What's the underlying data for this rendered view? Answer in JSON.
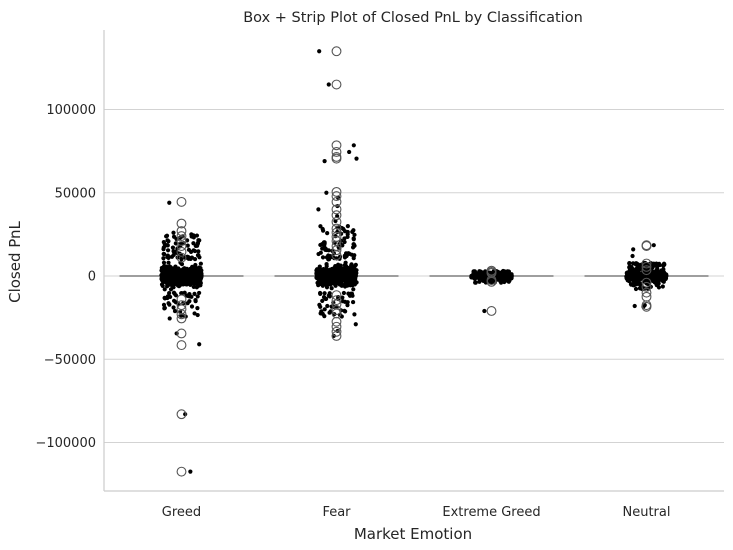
{
  "chart_data": {
    "type": "box+strip",
    "title": "Box + Strip Plot of Closed PnL by Classification",
    "xlabel": "Market Emotion",
    "ylabel": "Closed PnL",
    "ylim": [
      -130000,
      148000
    ],
    "yticks": [
      {
        "value": 100000,
        "label": "100000"
      },
      {
        "value": 50000,
        "label": "50000"
      },
      {
        "value": 0,
        "label": "0"
      },
      {
        "value": -50000,
        "label": "−50000"
      },
      {
        "value": -100000,
        "label": "−100000"
      }
    ],
    "grid": "horizontal",
    "colors": {
      "grid": "#d3d3d3",
      "axis": "#cccccc",
      "box": "#7f7f7f",
      "strip": "#000000",
      "flier_edge": "#555555"
    },
    "categories": [
      "Greed",
      "Fear",
      "Extreme Greed",
      "Neutral"
    ],
    "groups": [
      {
        "category": "Greed",
        "box": {
          "q1": 0,
          "median": 0,
          "q3": 0,
          "whisker_low": 0,
          "whisker_high": 0
        },
        "core_range": [
          -8000,
          8000
        ],
        "upper_band": [
          10000,
          25000
        ],
        "lower_band": [
          -25000,
          -10000
        ],
        "outliers": [
          44500,
          31500,
          27000,
          24000,
          21000,
          18000,
          14500,
          11000,
          -14000,
          -17500,
          -20000,
          -23000,
          -25500,
          -34500,
          -41500,
          -83000,
          -117500
        ],
        "strip_extremes": [
          44000,
          26000,
          25000,
          -25500,
          -34500,
          -41000,
          -83000,
          -117500
        ]
      },
      {
        "category": "Fear",
        "box": {
          "q1": 0,
          "median": 0,
          "q3": 0,
          "whisker_low": 0,
          "whisker_high": 0
        },
        "core_range": [
          -8000,
          8000
        ],
        "upper_band": [
          10000,
          30000
        ],
        "lower_band": [
          -25000,
          -10000
        ],
        "outliers": [
          135000,
          115000,
          78500,
          74500,
          71500,
          70500,
          50500,
          48000,
          44500,
          40000,
          36500,
          32500,
          28500,
          26000,
          23500,
          21000,
          18000,
          15500,
          12500,
          -11500,
          -14500,
          -17000,
          -20500,
          -22500,
          -27500,
          -30500,
          -33500,
          -36000
        ],
        "strip_extremes": [
          135000,
          115000,
          78500,
          74500,
          70500,
          69000,
          50000,
          47000,
          42000,
          40000,
          36000,
          33000,
          -29000,
          -33000,
          -36000
        ]
      },
      {
        "category": "Extreme Greed",
        "box": {
          "q1": 0,
          "median": 0,
          "q3": 0,
          "whisker_low": 0,
          "whisker_high": 0
        },
        "core_range": [
          -1500,
          1500
        ],
        "upper_band": [
          1500,
          3000
        ],
        "lower_band": [
          -4000,
          -1500
        ],
        "outliers": [
          3200,
          2400,
          1800,
          -2500,
          -3500,
          -21000
        ],
        "strip_extremes": [
          3000,
          -4000,
          -21000
        ]
      },
      {
        "category": "Neutral",
        "box": {
          "q1": 0,
          "median": 0,
          "q3": 0,
          "whisker_low": 0,
          "whisker_high": 0
        },
        "core_range": [
          -3000,
          3000
        ],
        "upper_band": [
          3000,
          8000
        ],
        "lower_band": [
          -8000,
          -3000
        ],
        "outliers": [
          18500,
          18000,
          7500,
          5500,
          3500,
          -4000,
          -6500,
          -10000,
          -12500,
          -17500,
          -18500
        ],
        "strip_extremes": [
          18500,
          16000,
          12000,
          -17500,
          -18000,
          -18500
        ]
      }
    ]
  }
}
